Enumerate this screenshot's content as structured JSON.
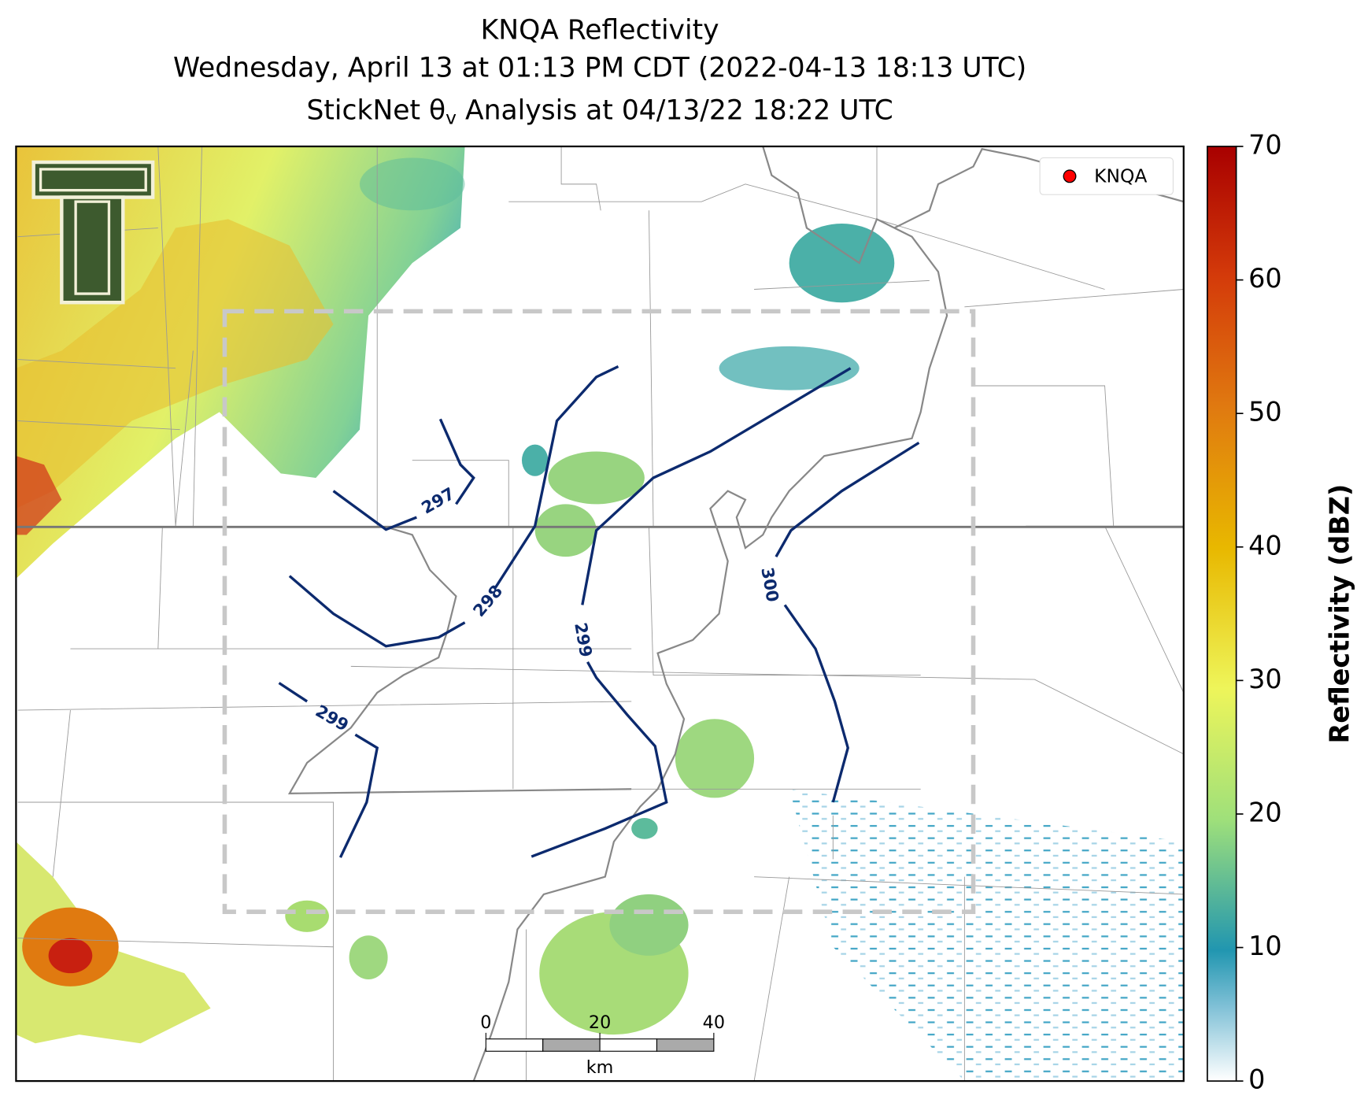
{
  "title": {
    "line1": "KNQA Reflectivity",
    "line2": "Wednesday, April 13 at 01:13 PM CDT (2022-04-13 18:13 UTC)",
    "line3": {
      "prefix": "StickNet θ",
      "subscript": "v",
      "suffix": " Analysis at 04/13/22 18:22 UTC"
    }
  },
  "legend": {
    "label": "KNQA",
    "color": "#ff0000"
  },
  "colorbar": {
    "label": "Reflectivity (dBZ)",
    "lim": [
      0,
      70
    ],
    "ticks": [
      0,
      10,
      20,
      30,
      40,
      50,
      60,
      70
    ]
  },
  "contours": [
    "297",
    "298",
    "299",
    "299",
    "300"
  ],
  "scale_bar": {
    "ticks": [
      0,
      20,
      40
    ],
    "unit": "km"
  }
}
